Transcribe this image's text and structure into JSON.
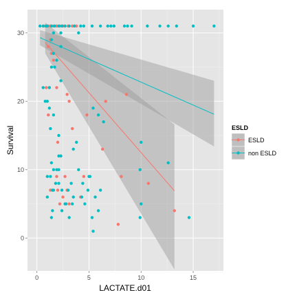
{
  "chart_data": {
    "type": "scatter",
    "title": "",
    "xlabel": "LACTATE.d01",
    "ylabel": "Survival",
    "xlim": [
      -0.9,
      17.9
    ],
    "ylim": [
      -4.8,
      33.4
    ],
    "x_ticks": [
      0,
      5,
      10,
      15
    ],
    "y_ticks": [
      0,
      10,
      20,
      30
    ],
    "grid": true,
    "legend": {
      "title": "ESLD",
      "position": "right"
    },
    "series": [
      {
        "name": "ESLD",
        "color": "#F8766D",
        "points": [
          [
            0.8,
            31
          ],
          [
            1.1,
            31
          ],
          [
            1.3,
            31
          ],
          [
            1.6,
            31
          ],
          [
            1.9,
            31
          ],
          [
            2.2,
            31
          ],
          [
            2.5,
            31
          ],
          [
            3.0,
            31
          ],
          [
            3.4,
            31
          ],
          [
            3.8,
            31
          ],
          [
            1.3,
            29
          ],
          [
            1.1,
            28
          ],
          [
            1.4,
            27
          ],
          [
            1.6,
            26
          ],
          [
            0.9,
            22
          ],
          [
            1.2,
            22
          ],
          [
            1.9,
            22
          ],
          [
            2.9,
            21
          ],
          [
            8.6,
            21
          ],
          [
            3.1,
            20
          ],
          [
            6.6,
            20
          ],
          [
            1.1,
            18
          ],
          [
            4.8,
            18
          ],
          [
            2.0,
            14
          ],
          [
            6.3,
            13
          ],
          [
            2.3,
            12
          ],
          [
            2.7,
            9
          ],
          [
            1.9,
            9
          ],
          [
            4.5,
            9
          ],
          [
            8.1,
            9
          ],
          [
            1.3,
            7
          ],
          [
            2.0,
            7
          ],
          [
            2.9,
            7
          ],
          [
            10.7,
            8
          ],
          [
            2.2,
            5
          ],
          [
            2.5,
            6
          ],
          [
            3.1,
            5
          ],
          [
            4.2,
            6
          ],
          [
            13.2,
            4
          ],
          [
            7.8,
            2
          ],
          [
            3.4,
            16
          ]
        ],
        "trend": {
          "x0": 0.8,
          "y0": 28.6,
          "x1": 13.2,
          "y1": 6.9,
          "ci_x0_lo": 27.0,
          "ci_x0_hi": 31.5,
          "ci_x1_lo": -4.6,
          "ci_x1_hi": 16.6
        }
      },
      {
        "name": "non ESLD",
        "color": "#00BFC4",
        "points": [
          [
            0.3,
            31
          ],
          [
            0.6,
            31
          ],
          [
            0.9,
            31
          ],
          [
            1.0,
            31
          ],
          [
            1.4,
            31
          ],
          [
            1.7,
            31
          ],
          [
            2.1,
            31
          ],
          [
            2.4,
            31
          ],
          [
            2.7,
            31
          ],
          [
            3.1,
            31
          ],
          [
            3.6,
            31
          ],
          [
            4.2,
            31
          ],
          [
            4.5,
            31
          ],
          [
            5.3,
            31
          ],
          [
            6.1,
            31
          ],
          [
            6.8,
            31
          ],
          [
            7.1,
            31
          ],
          [
            7.4,
            31
          ],
          [
            8.4,
            31
          ],
          [
            8.7,
            31
          ],
          [
            9.1,
            31
          ],
          [
            10.6,
            31
          ],
          [
            11.8,
            31
          ],
          [
            12.6,
            31
          ],
          [
            13.4,
            31
          ],
          [
            15.0,
            31
          ],
          [
            17.0,
            31
          ],
          [
            1.6,
            30
          ],
          [
            2.3,
            30
          ],
          [
            4.0,
            30
          ],
          [
            1.4,
            29
          ],
          [
            2.3,
            28
          ],
          [
            1.6,
            27
          ],
          [
            1.9,
            26
          ],
          [
            1.4,
            25
          ],
          [
            1.7,
            25
          ],
          [
            2.3,
            23
          ],
          [
            0.6,
            22
          ],
          [
            1.2,
            22
          ],
          [
            0.8,
            20
          ],
          [
            1.0,
            20
          ],
          [
            1.2,
            19
          ],
          [
            5.4,
            19
          ],
          [
            1.6,
            18
          ],
          [
            5.9,
            18
          ],
          [
            6.4,
            17
          ],
          [
            1.3,
            16
          ],
          [
            2.1,
            15
          ],
          [
            3.8,
            14
          ],
          [
            10.0,
            14
          ],
          [
            3.5,
            13
          ],
          [
            2.1,
            12
          ],
          [
            2.3,
            12
          ],
          [
            1.4,
            11
          ],
          [
            12.6,
            11
          ],
          [
            1.6,
            10
          ],
          [
            1.9,
            10
          ],
          [
            2.1,
            10
          ],
          [
            4.0,
            10
          ],
          [
            9.9,
            10
          ],
          [
            5.1,
            9
          ],
          [
            1.0,
            9
          ],
          [
            1.3,
            9
          ],
          [
            1.8,
            8
          ],
          [
            2.1,
            8
          ],
          [
            3.3,
            8
          ],
          [
            4.4,
            8
          ],
          [
            1.5,
            7
          ],
          [
            2.4,
            7
          ],
          [
            3.0,
            7
          ],
          [
            4.9,
            7
          ],
          [
            6.1,
            7
          ],
          [
            1.0,
            6
          ],
          [
            3.5,
            6
          ],
          [
            4.3,
            6
          ],
          [
            5.6,
            6
          ],
          [
            2.8,
            5
          ],
          [
            3.4,
            5
          ],
          [
            4.6,
            5
          ],
          [
            1.5,
            4
          ],
          [
            2.4,
            4
          ],
          [
            5.9,
            4
          ],
          [
            3.1,
            3
          ],
          [
            5.3,
            3
          ],
          [
            9.9,
            3
          ],
          [
            14.6,
            3
          ],
          [
            5.4,
            1
          ],
          [
            10.0,
            5
          ],
          [
            2.7,
            5
          ],
          [
            1.4,
            3
          ],
          [
            1.6,
            7
          ],
          [
            5.0,
            9
          ]
        ],
        "trend": {
          "x0": 0.3,
          "y0": 29.3,
          "x1": 17.0,
          "y1": 18.1,
          "ci_x0_lo": 28.2,
          "ci_x0_hi": 30.4,
          "ci_x1_lo": 13.4,
          "ci_x1_hi": 23.0
        }
      }
    ]
  }
}
